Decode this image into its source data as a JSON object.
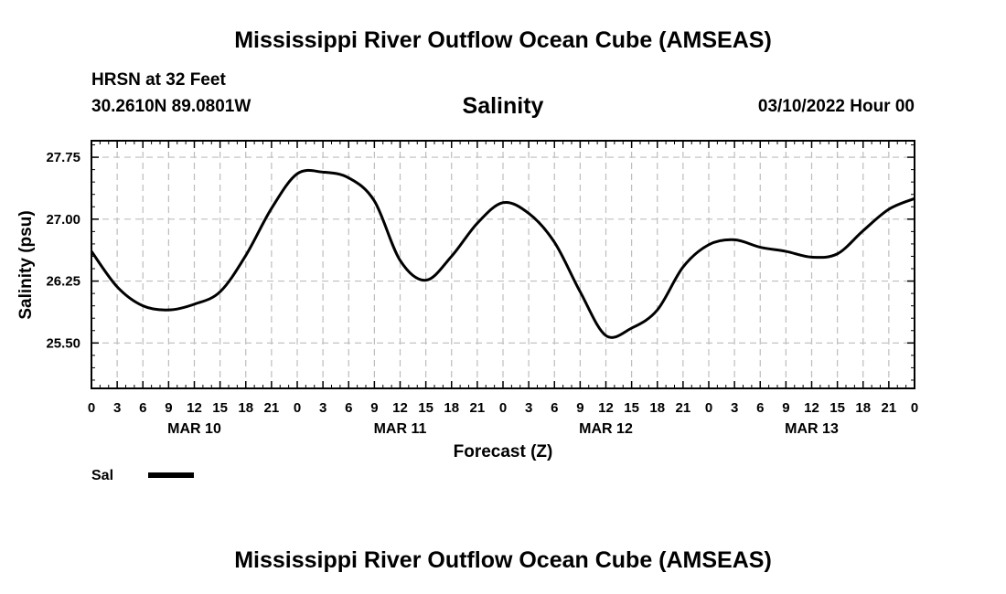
{
  "page_title": "Mississippi River Outflow Ocean Cube (AMSEAS)",
  "station": {
    "name_depth": "HRSN at 32 Feet",
    "coordinates": "30.2610N  89.0801W",
    "valid_time": "03/10/2022 Hour 00"
  },
  "chart_data": {
    "type": "line",
    "title": "Salinity",
    "xlabel": "Forecast (Z)",
    "ylabel": "Salinity (psu)",
    "x_unit": "forecast hour",
    "xlim": [
      0,
      96
    ],
    "ylim": [
      24.95,
      27.95
    ],
    "yticks": [
      "25.50",
      "26.25",
      "27.00",
      "27.75"
    ],
    "xtick_labels": [
      "0",
      "3",
      "6",
      "9",
      "12",
      "15",
      "18",
      "21",
      "0",
      "3",
      "6",
      "9",
      "12",
      "15",
      "18",
      "21",
      "0",
      "3",
      "6",
      "9",
      "12",
      "15",
      "18",
      "21",
      "0",
      "3",
      "6",
      "9",
      "12",
      "15",
      "18",
      "21",
      "0"
    ],
    "day_labels": [
      "MAR 10",
      "MAR 11",
      "MAR 12",
      "MAR 13"
    ],
    "grid": true,
    "series": [
      {
        "name": "Sal",
        "color": "#000000",
        "x": [
          0,
          3,
          6,
          9,
          12,
          15,
          18,
          21,
          24,
          27,
          30,
          33,
          36,
          39,
          42,
          45,
          48,
          51,
          54,
          57,
          60,
          63,
          66,
          69,
          72,
          75,
          78,
          81,
          84,
          87,
          90,
          93,
          96
        ],
        "values": [
          26.61,
          26.18,
          25.95,
          25.9,
          25.97,
          26.12,
          26.56,
          27.13,
          27.55,
          27.57,
          27.5,
          27.22,
          26.5,
          26.26,
          26.55,
          26.95,
          27.2,
          27.07,
          26.72,
          26.12,
          25.59,
          25.68,
          25.9,
          26.42,
          26.69,
          26.75,
          26.66,
          26.61,
          26.54,
          26.58,
          26.86,
          27.12,
          27.25
        ]
      }
    ]
  },
  "legend": {
    "label": "Sal"
  },
  "footer_title": "Mississippi River Outflow Ocean Cube (AMSEAS)"
}
